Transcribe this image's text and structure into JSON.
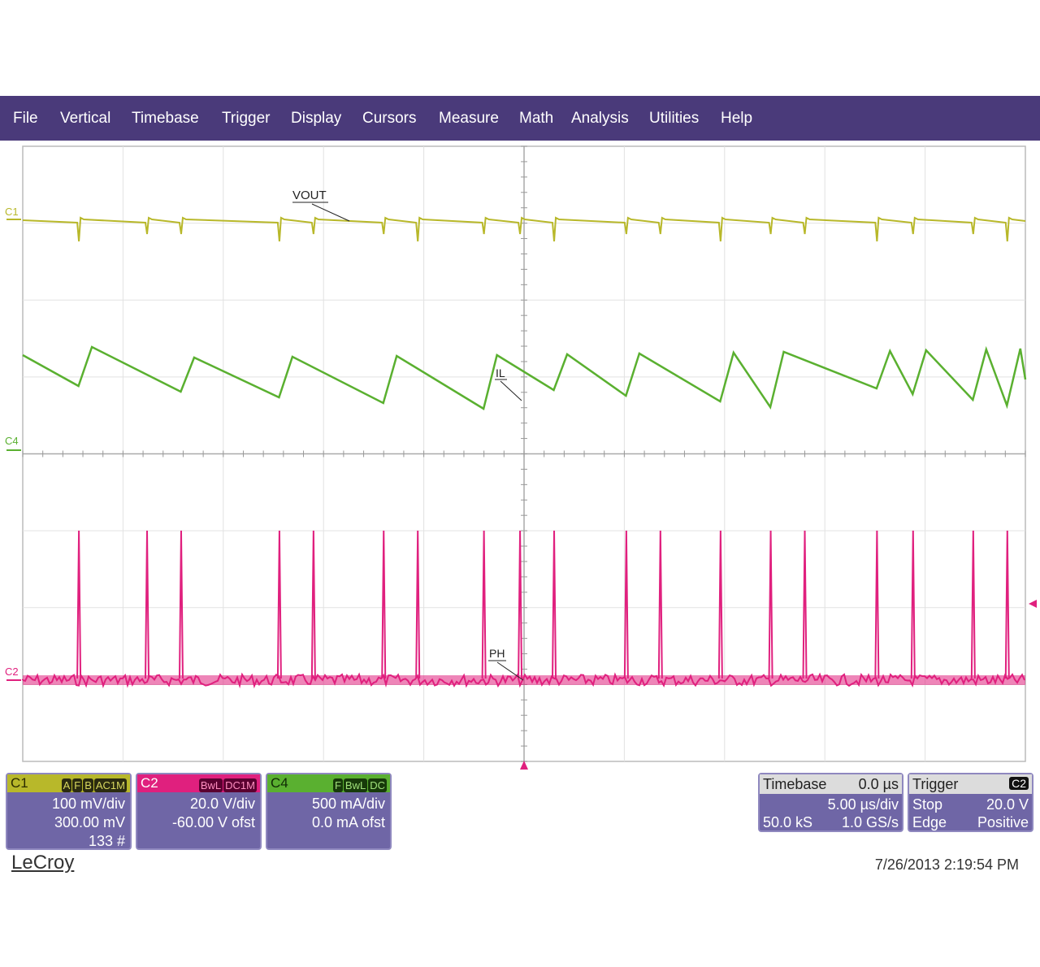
{
  "menu": [
    "File",
    "Vertical",
    "Timebase",
    "Trigger",
    "Display",
    "Cursors",
    "Measure",
    "Math",
    "Analysis",
    "Utilities",
    "Help"
  ],
  "colors": {
    "menubar": "#4a3a7a",
    "c1": "#b8b82a",
    "c2": "#e0207e",
    "c4": "#5ab030",
    "panel": "#6f66a6"
  },
  "trace_labels": {
    "vout": "VOUT",
    "il": "IL",
    "ph": "PH"
  },
  "channel_markers": {
    "c1": "C1",
    "c4": "C4",
    "c2": "C2"
  },
  "channels": [
    {
      "name": "C1",
      "tags": [
        "A",
        "F",
        "B",
        "AC1M"
      ],
      "lines": [
        "100 mV/div",
        "300.00 mV",
        "133 #"
      ]
    },
    {
      "name": "C2",
      "tags": [
        "BwL",
        "DC1M"
      ],
      "lines": [
        "20.0 V/div",
        "-60.00 V ofst"
      ]
    },
    {
      "name": "C4",
      "tags": [
        "F",
        "BwL",
        "DC"
      ],
      "lines": [
        "500 mA/div",
        "0.0 mA ofst"
      ]
    }
  ],
  "timebase": {
    "title": "Timebase",
    "delay": "0.0 µs",
    "per_div": "5.00 µs/div",
    "samples": "50.0 kS",
    "rate": "1.0 GS/s"
  },
  "trigger": {
    "title": "Trigger",
    "source": "C2",
    "mode": "Stop",
    "level": "20.0 V",
    "type": "Edge",
    "slope": "Positive"
  },
  "brand": "LeCroy",
  "timestamp": "7/26/2013 2:19:54 PM",
  "chart_data": {
    "type": "line",
    "x_unit": "µs",
    "x_range": [
      -25,
      25
    ],
    "switch_events_x": [
      -22.2,
      -18.8,
      -17.1,
      -12.2,
      -10.5,
      -7.0,
      -5.3,
      -2.0,
      -0.2,
      1.5,
      5.1,
      6.8,
      9.8,
      12.3,
      14.0,
      17.6,
      19.4,
      22.4,
      24.1
    ],
    "series": [
      {
        "name": "VOUT",
        "channel": "C1",
        "description": "ripple with small negative spikes at each switching event"
      },
      {
        "name": "IL",
        "channel": "C4",
        "ramp_up_peaks_x": [
          -22.2,
          -17.1,
          -12.2,
          -7.0,
          -2.0,
          1.5,
          5.1,
          9.8,
          12.3,
          17.6,
          19.4,
          22.4,
          24.1
        ]
      },
      {
        "name": "PH",
        "channel": "C2",
        "pulse_x": [
          -22.2,
          -18.8,
          -17.1,
          -12.2,
          -10.5,
          -7.0,
          -5.3,
          -2.0,
          -0.2,
          1.5,
          5.1,
          6.8,
          9.8,
          12.3,
          14.0,
          17.6,
          19.4,
          22.4,
          24.1
        ]
      }
    ]
  }
}
